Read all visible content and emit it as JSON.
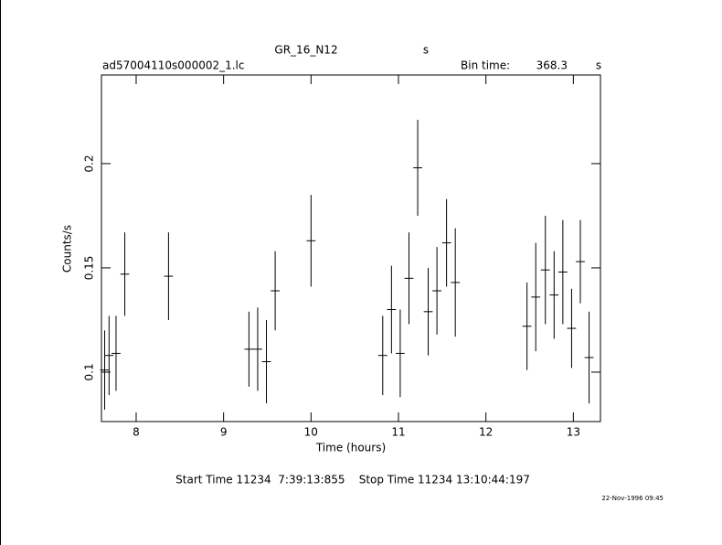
{
  "chart_data": {
    "type": "errorbar",
    "title": "GR_16_N12",
    "title_unit": "s",
    "file_name": "ad57004110s000002_1.lc",
    "bin_time_label": "Bin time:",
    "bin_time": 368.3,
    "bin_time_unit": "s",
    "xlabel": "Time (hours)",
    "ylabel": "Counts/s",
    "time_range": "Start Time 11234  7:39:13:855    Stop Time 11234 13:10:44:197",
    "timestamp": "22-Nov-1996 09:45",
    "color": "#000000",
    "x": [
      7.64,
      7.69,
      7.77,
      7.87,
      8.37,
      9.29,
      9.39,
      9.49,
      9.59,
      10.0,
      10.82,
      10.92,
      11.02,
      11.12,
      11.22,
      11.34,
      11.44,
      11.55,
      11.65,
      12.47,
      12.57,
      12.68,
      12.78,
      12.88,
      12.98,
      13.08,
      13.18
    ],
    "values": [
      0.101,
      0.108,
      0.109,
      0.147,
      0.146,
      0.111,
      0.111,
      0.105,
      0.139,
      0.163,
      0.108,
      0.13,
      0.109,
      0.145,
      0.198,
      0.129,
      0.139,
      0.162,
      0.143,
      0.122,
      0.136,
      0.149,
      0.137,
      0.148,
      0.121,
      0.153,
      0.107
    ],
    "errors": [
      0.019,
      0.019,
      0.018,
      0.02,
      0.021,
      0.018,
      0.02,
      0.02,
      0.019,
      0.022,
      0.019,
      0.021,
      0.021,
      0.022,
      0.023,
      0.021,
      0.021,
      0.021,
      0.026,
      0.021,
      0.026,
      0.026,
      0.021,
      0.025,
      0.019,
      0.02,
      0.022
    ],
    "xlim": [
      7.603,
      13.31
    ],
    "ylim": [
      0.0763,
      0.2425
    ],
    "xticks": [
      8,
      9,
      10,
      11,
      12,
      13
    ],
    "yticks": [
      0.1,
      0.15,
      0.2
    ]
  }
}
